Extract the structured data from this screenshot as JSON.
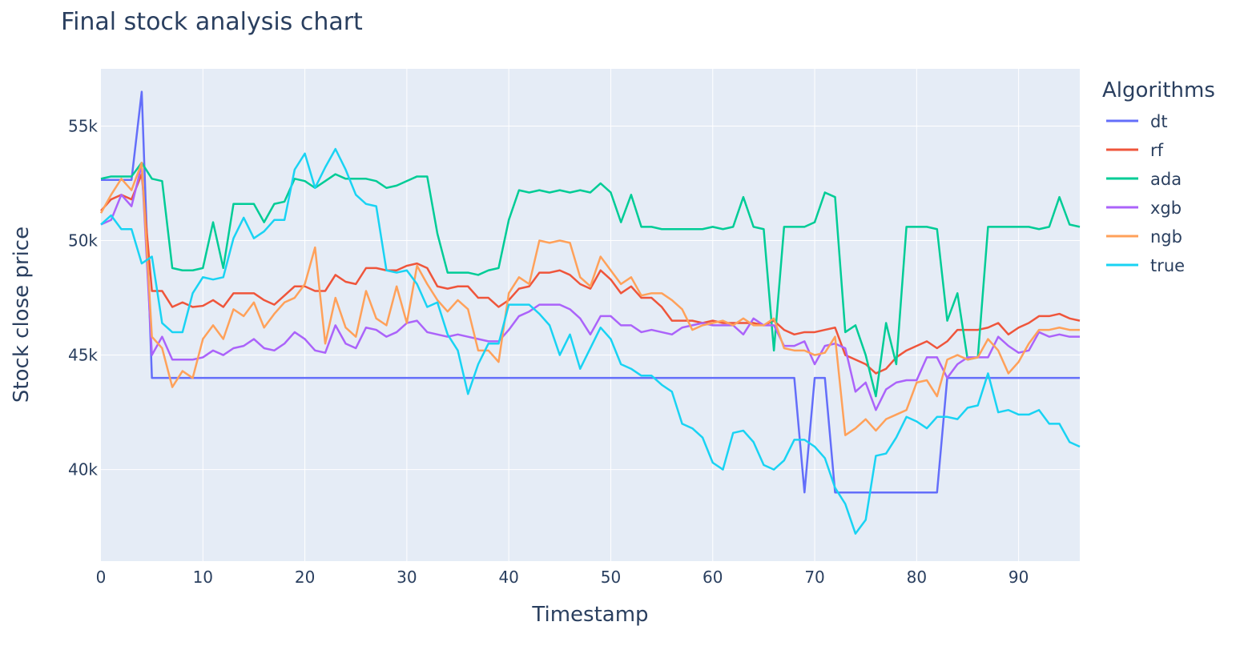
{
  "chart_data": {
    "type": "line",
    "title": "Final stock analysis chart",
    "xlabel": "Timestamp",
    "ylabel": "Stock close price",
    "xlim": [
      0,
      96
    ],
    "ylim": [
      36000,
      57500
    ],
    "xticks": [
      0,
      10,
      20,
      30,
      40,
      50,
      60,
      70,
      80,
      90
    ],
    "xtick_labels": [
      "0",
      "10",
      "20",
      "30",
      "40",
      "50",
      "60",
      "70",
      "80",
      "90"
    ],
    "yticks": [
      40000,
      45000,
      50000,
      55000
    ],
    "ytick_labels": [
      "40k",
      "45k",
      "50k",
      "55k"
    ],
    "grid": true,
    "plot_background": "#e5ecf6",
    "legend": {
      "title": "Algorithms",
      "placement": "right"
    },
    "series": [
      {
        "name": "dt",
        "color": "#636efa",
        "values": [
          52650,
          52650,
          52650,
          52650,
          56500,
          44000,
          44000,
          44000,
          44000,
          44000,
          44000,
          44000,
          44000,
          44000,
          44000,
          44000,
          44000,
          44000,
          44000,
          44000,
          44000,
          44000,
          44000,
          44000,
          44000,
          44000,
          44000,
          44000,
          44000,
          44000,
          44000,
          44000,
          44000,
          44000,
          44000,
          44000,
          44000,
          44000,
          44000,
          44000,
          44000,
          44000,
          44000,
          44000,
          44000,
          44000,
          44000,
          44000,
          44000,
          44000,
          44000,
          44000,
          44000,
          44000,
          44000,
          44000,
          44000,
          44000,
          44000,
          44000,
          44000,
          44000,
          44000,
          44000,
          44000,
          44000,
          44000,
          44000,
          44000,
          39000,
          44000,
          44000,
          39000,
          39000,
          39000,
          39000,
          39000,
          39000,
          39000,
          39000,
          39000,
          39000,
          39000,
          44000,
          44000,
          44000,
          44000,
          44000,
          44000,
          44000,
          44000,
          44000,
          44000,
          44000,
          44000,
          44000,
          44000
        ]
      },
      {
        "name": "rf",
        "color": "#ef553b",
        "values": [
          51300,
          51800,
          52000,
          51800,
          52900,
          47800,
          47800,
          47100,
          47300,
          47100,
          47150,
          47400,
          47100,
          47700,
          47700,
          47700,
          47400,
          47200,
          47600,
          48000,
          48000,
          47800,
          47800,
          48500,
          48200,
          48100,
          48800,
          48800,
          48700,
          48700,
          48900,
          49000,
          48800,
          48000,
          47900,
          48000,
          48000,
          47500,
          47500,
          47100,
          47400,
          47900,
          48000,
          48600,
          48600,
          48700,
          48500,
          48100,
          47900,
          48700,
          48300,
          47700,
          48000,
          47500,
          47500,
          47100,
          46500,
          46500,
          46500,
          46400,
          46500,
          46400,
          46400,
          46400,
          46400,
          46300,
          46500,
          46100,
          45900,
          46000,
          46000,
          46100,
          46200,
          45000,
          44800,
          44600,
          44200,
          44400,
          44900,
          45200,
          45400,
          45600,
          45300,
          45600,
          46100,
          46100,
          46100,
          46200,
          46400,
          45900,
          46200,
          46400,
          46700,
          46700,
          46800,
          46600,
          46500
        ]
      },
      {
        "name": "ada",
        "color": "#00cc96",
        "values": [
          52700,
          52800,
          52800,
          52800,
          53400,
          52700,
          52600,
          48800,
          48700,
          48700,
          48800,
          50800,
          48800,
          51600,
          51600,
          51600,
          50800,
          51600,
          51700,
          52700,
          52600,
          52300,
          52600,
          52900,
          52700,
          52700,
          52700,
          52600,
          52300,
          52400,
          52600,
          52800,
          52800,
          50300,
          48600,
          48600,
          48600,
          48500,
          48700,
          48800,
          50900,
          52200,
          52100,
          52200,
          52100,
          52200,
          52100,
          52200,
          52100,
          52500,
          52100,
          50800,
          52000,
          50600,
          50600,
          50500,
          50500,
          50500,
          50500,
          50500,
          50600,
          50500,
          50600,
          51900,
          50600,
          50500,
          45200,
          50600,
          50600,
          50600,
          50800,
          52100,
          51900,
          46000,
          46300,
          45000,
          43200,
          46400,
          44600,
          50600,
          50600,
          50600,
          50500,
          46500,
          47700,
          44800,
          44900,
          50600,
          50600,
          50600,
          50600,
          50600,
          50500,
          50600,
          51900,
          50700,
          50600
        ]
      },
      {
        "name": "xgb",
        "color": "#ab63fa",
        "values": [
          50700,
          50900,
          52000,
          51500,
          53300,
          45000,
          45800,
          44800,
          44800,
          44800,
          44900,
          45200,
          45000,
          45300,
          45400,
          45700,
          45300,
          45200,
          45500,
          46000,
          45700,
          45200,
          45100,
          46300,
          45500,
          45300,
          46200,
          46100,
          45800,
          46000,
          46400,
          46500,
          46000,
          45900,
          45800,
          45900,
          45800,
          45700,
          45600,
          45600,
          46100,
          46700,
          46900,
          47200,
          47200,
          47200,
          47000,
          46600,
          45900,
          46700,
          46700,
          46300,
          46300,
          46000,
          46100,
          46000,
          45900,
          46200,
          46300,
          46400,
          46300,
          46300,
          46300,
          45900,
          46600,
          46300,
          46300,
          45400,
          45400,
          45600,
          44600,
          45400,
          45500,
          45300,
          43400,
          43800,
          42600,
          43500,
          43800,
          43900,
          43900,
          44900,
          44900,
          44000,
          44600,
          44900,
          44900,
          44900,
          45800,
          45400,
          45100,
          45200,
          46000,
          45800,
          45900,
          45800,
          45800
        ]
      },
      {
        "name": "ngb",
        "color": "#ffa15a",
        "values": [
          51200,
          52000,
          52700,
          52200,
          53400,
          45800,
          45300,
          43600,
          44300,
          44000,
          45700,
          46300,
          45700,
          47000,
          46700,
          47300,
          46200,
          46800,
          47300,
          47500,
          48100,
          49700,
          45500,
          47500,
          46200,
          45800,
          47800,
          46600,
          46300,
          48000,
          46400,
          48900,
          48100,
          47400,
          46900,
          47400,
          47000,
          45200,
          45200,
          44700,
          47700,
          48400,
          48100,
          50000,
          49900,
          50000,
          49900,
          48400,
          48000,
          49300,
          48700,
          48100,
          48400,
          47600,
          47700,
          47700,
          47400,
          47000,
          46100,
          46300,
          46400,
          46500,
          46300,
          46600,
          46300,
          46300,
          46600,
          45300,
          45200,
          45200,
          45000,
          45100,
          45800,
          41500,
          41800,
          42200,
          41700,
          42200,
          42400,
          42600,
          43800,
          43900,
          43200,
          44800,
          45000,
          44800,
          44900,
          45700,
          45200,
          44200,
          44700,
          45500,
          46100,
          46100,
          46200,
          46100,
          46100
        ]
      },
      {
        "name": "true",
        "color": "#19d3f3",
        "values": [
          50700,
          51100,
          50500,
          50500,
          49000,
          49300,
          46400,
          46000,
          46000,
          47700,
          48400,
          48300,
          48400,
          50100,
          51000,
          50100,
          50400,
          50900,
          50900,
          53100,
          53800,
          52300,
          53200,
          54000,
          53100,
          52000,
          51600,
          51500,
          48700,
          48600,
          48700,
          48100,
          47100,
          47300,
          45900,
          45200,
          43300,
          44600,
          45500,
          45500,
          47200,
          47200,
          47200,
          46800,
          46300,
          45000,
          45900,
          44400,
          45300,
          46200,
          45700,
          44600,
          44400,
          44100,
          44100,
          43700,
          43400,
          42000,
          41800,
          41400,
          40300,
          40000,
          41600,
          41700,
          41200,
          40200,
          40000,
          40400,
          41300,
          41300,
          41000,
          40500,
          39200,
          38500,
          37200,
          37800,
          40600,
          40700,
          41400,
          42300,
          42100,
          41800,
          42300,
          42300,
          42200,
          42700,
          42800,
          44200,
          42500,
          42600,
          42400,
          42400,
          42600,
          42000,
          42000,
          41200,
          41000
        ]
      }
    ]
  }
}
